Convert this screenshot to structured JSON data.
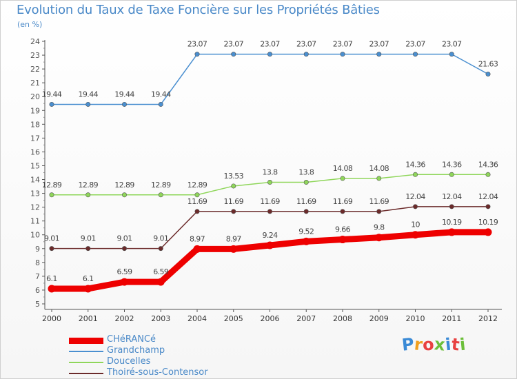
{
  "header": {
    "title": "Evolution du Taux de Taxe Foncière sur les Propriétés Bâties",
    "unit": "(en %)"
  },
  "chart_data": {
    "type": "line",
    "title": "Evolution du Taux de Taxe Foncière sur les Propriétés Bâties",
    "ylabel": "(en %)",
    "xlabel": "",
    "ylim": [
      5,
      24
    ],
    "yticks": [
      5,
      6,
      7,
      8,
      9,
      10,
      11,
      12,
      13,
      14,
      15,
      16,
      17,
      18,
      19,
      20,
      21,
      22,
      23,
      24
    ],
    "grid": false,
    "legend_position": "bottom-left",
    "categories": [
      "2000",
      "2001",
      "2002",
      "2003",
      "2004",
      "2005",
      "2006",
      "2007",
      "2008",
      "2009",
      "2010",
      "2011",
      "2012"
    ],
    "series": [
      {
        "name": "Grandchamp",
        "color": "#4a8fd0",
        "emphasis": false,
        "values": [
          19.44,
          19.44,
          19.44,
          19.44,
          23.07,
          23.07,
          23.07,
          23.07,
          23.07,
          23.07,
          23.07,
          23.07,
          21.63
        ],
        "labels": [
          "19.44",
          "19.44",
          "19.44",
          "19.44",
          "23.07",
          "23.07",
          "23.07",
          "23.07",
          "23.07",
          "23.07",
          "23.07",
          "23.07",
          "21.63"
        ]
      },
      {
        "name": "Doucelles",
        "color": "#8fd65a",
        "emphasis": false,
        "values": [
          12.89,
          12.89,
          12.89,
          12.89,
          12.89,
          13.53,
          13.8,
          13.8,
          14.08,
          14.08,
          14.36,
          14.36,
          14.36
        ],
        "labels": [
          "12.89",
          "12.89",
          "12.89",
          "12.89",
          "12.89",
          "13.53",
          "13.8",
          "13.8",
          "14.08",
          "14.08",
          "14.36",
          "14.36",
          "14.36"
        ]
      },
      {
        "name": "Thoiré-sous-Contensor",
        "color": "#6b2a2a",
        "emphasis": false,
        "values": [
          9.01,
          9.01,
          9.01,
          9.01,
          11.69,
          11.69,
          11.69,
          11.69,
          11.69,
          11.69,
          12.04,
          12.04,
          12.04
        ],
        "labels": [
          "9.01",
          "9.01",
          "9.01",
          "9.01",
          "11.69",
          "11.69",
          "11.69",
          "11.69",
          "11.69",
          "11.69",
          "12.04",
          "12.04",
          "12.04"
        ]
      },
      {
        "name": "CHéRANCé",
        "color": "#ee0000",
        "emphasis": true,
        "values": [
          6.1,
          6.1,
          6.59,
          6.59,
          8.97,
          8.97,
          9.24,
          9.52,
          9.66,
          9.8,
          10,
          10.19,
          10.19
        ],
        "labels": [
          "6.1",
          "6.1",
          "6.59",
          "6.59",
          "8.97",
          "8.97",
          "9.24",
          "9.52",
          "9.66",
          "9.8",
          "10",
          "10.19",
          "10.19"
        ]
      }
    ]
  },
  "legend": [
    {
      "label": "CHéRANCé",
      "color": "#ee0000"
    },
    {
      "label": "Grandchamp",
      "color": "#4a8fd0"
    },
    {
      "label": "Doucelles",
      "color": "#8fd65a"
    },
    {
      "label": "Thoiré-sous-Contensor",
      "color": "#6b2a2a"
    }
  ],
  "logo": {
    "text": "Proxiti",
    "letter_colors": [
      "#3a8ad6",
      "#f0a020",
      "#e84040",
      "#6cbf3a",
      "#3a8ad6",
      "#e84040",
      "#6cbf3a"
    ]
  }
}
